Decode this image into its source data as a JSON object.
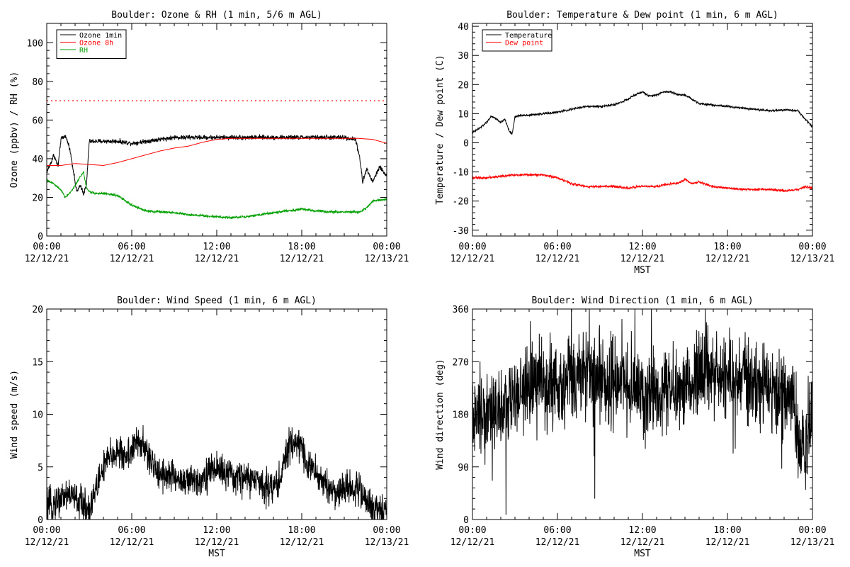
{
  "chart_data": [
    {
      "type": "line",
      "title": "Boulder: Ozone & RH (1 min, 5/6 m AGL)",
      "ylabel": "Ozone (ppbv) / RH (%)",
      "xlabel": "",
      "ylim": [
        0,
        110
      ],
      "yticks": [
        0,
        20,
        40,
        60,
        80,
        100
      ],
      "xticks": [
        {
          "h": 0,
          "time": "00:00",
          "date": "12/12/21"
        },
        {
          "h": 6,
          "time": "06:00",
          "date": "12/12/21"
        },
        {
          "h": 12,
          "time": "12:00",
          "date": "12/12/21"
        },
        {
          "h": 18,
          "time": "18:00",
          "date": "12/12/21"
        },
        {
          "h": 24,
          "time": "00:00",
          "date": "12/13/21"
        }
      ],
      "reference_line": {
        "y": 70,
        "color": "#ff0000",
        "style": "dotted"
      },
      "legend": {
        "placement": "top-left"
      },
      "series": [
        {
          "name": "Ozone 1min",
          "color": "#000000",
          "noise": 1.2,
          "x": [
            0,
            0.3,
            0.5,
            0.8,
            1.0,
            1.3,
            1.6,
            1.9,
            2.1,
            2.4,
            2.6,
            2.8,
            3.0,
            3.3,
            4,
            5,
            6,
            7,
            8,
            9,
            10,
            11,
            12,
            13,
            14,
            15,
            16,
            17,
            18,
            19,
            20,
            21,
            21.8,
            22.1,
            22.3,
            22.6,
            23,
            23.5,
            24
          ],
          "y": [
            33,
            38,
            42,
            36,
            50,
            52,
            46,
            33,
            23,
            26,
            22,
            26,
            49,
            49,
            49,
            49,
            48,
            49,
            50,
            51,
            51,
            51,
            51,
            51,
            51,
            51,
            51,
            51,
            51,
            51,
            51,
            51,
            50,
            40,
            28,
            35,
            28,
            36,
            31
          ]
        },
        {
          "name": "Ozone 8h",
          "color": "#ff0000",
          "noise": 0,
          "x": [
            0,
            1,
            2,
            3,
            4,
            5,
            6,
            7,
            8,
            9,
            10,
            11,
            12,
            13,
            14,
            15,
            16,
            17,
            18,
            19,
            20,
            21,
            22,
            23,
            24
          ],
          "y": [
            36.5,
            36.5,
            37.5,
            37,
            36.5,
            38,
            40,
            42,
            44,
            45.5,
            46.5,
            48.5,
            50,
            50.5,
            50.5,
            50.5,
            50.5,
            50.5,
            50.5,
            50.5,
            50.5,
            50.5,
            50.5,
            50,
            48
          ]
        },
        {
          "name": "RH",
          "color": "#00a000",
          "noise": 0.6,
          "x": [
            0,
            0.5,
            1.0,
            1.3,
            1.6,
            2.0,
            2.3,
            2.6,
            2.8,
            3.0,
            3.5,
            4,
            5,
            6,
            7,
            8,
            9,
            10,
            11,
            12,
            13,
            14,
            15,
            16,
            17,
            18,
            19,
            20,
            21,
            22,
            22.5,
            23,
            24
          ],
          "y": [
            29,
            27,
            24,
            20,
            22,
            26,
            30,
            33,
            25,
            23,
            22,
            22,
            21,
            16,
            13,
            12.5,
            12,
            11,
            10.5,
            10,
            9.5,
            10,
            11,
            12,
            13,
            14,
            13,
            12.5,
            12.5,
            12.5,
            14,
            18,
            19
          ]
        }
      ]
    },
    {
      "type": "line",
      "title": "Boulder: Temperature & Dew point (1 min, 6 m AGL)",
      "ylabel": "Temperature / Dew point (C)",
      "xlabel": "MST",
      "ylim": [
        -32,
        41
      ],
      "yticks": [
        -30,
        -20,
        -10,
        0,
        10,
        20,
        30,
        40
      ],
      "xticks": [
        {
          "h": 0,
          "time": "00:00",
          "date": "12/12/21"
        },
        {
          "h": 6,
          "time": "06:00",
          "date": "12/12/21"
        },
        {
          "h": 12,
          "time": "12:00",
          "date": "12/12/21"
        },
        {
          "h": 18,
          "time": "18:00",
          "date": "12/12/21"
        },
        {
          "h": 24,
          "time": "00:00",
          "date": "12/13/21"
        }
      ],
      "legend": {
        "placement": "top-left"
      },
      "series": [
        {
          "name": "Temperature",
          "color": "#000000",
          "noise": 0.35,
          "x": [
            0,
            0.5,
            1.0,
            1.3,
            1.6,
            2.0,
            2.3,
            2.6,
            2.8,
            3.0,
            3.5,
            4,
            5,
            6,
            7,
            8,
            9,
            10,
            10.5,
            11,
            11.5,
            12,
            12.5,
            13,
            13.5,
            14,
            14.5,
            15,
            16,
            17,
            18,
            19,
            20,
            21,
            22,
            23,
            23.5,
            24
          ],
          "y": [
            3.5,
            5,
            7,
            9,
            8.5,
            7,
            8,
            4,
            3,
            9,
            9.5,
            9.5,
            10,
            10.5,
            11.5,
            12.5,
            12.5,
            13,
            14,
            15,
            16.5,
            17.5,
            16,
            16.5,
            17.5,
            17.5,
            16.5,
            16.5,
            13.5,
            13,
            12.5,
            12,
            11.5,
            11,
            11.3,
            11,
            8,
            5.5
          ]
        },
        {
          "name": "Dew point",
          "color": "#ff0000",
          "noise": 0.4,
          "x": [
            0,
            0.5,
            1,
            2,
            3,
            4,
            5,
            6,
            7,
            8,
            9,
            10,
            11,
            12,
            13,
            14,
            14.5,
            15,
            15.5,
            16,
            17,
            18,
            19,
            20,
            21,
            22,
            23,
            23.5,
            24
          ],
          "y": [
            -12,
            -12,
            -12,
            -11.5,
            -11,
            -11,
            -11,
            -12,
            -14,
            -15,
            -15,
            -15,
            -15.5,
            -15,
            -15,
            -14,
            -14,
            -12.5,
            -14,
            -13.5,
            -15,
            -15.5,
            -16,
            -16,
            -16,
            -16.5,
            -16,
            -15,
            -15.5
          ]
        }
      ]
    },
    {
      "type": "line",
      "title": "Boulder: Wind Speed (1 min, 6 m AGL)",
      "ylabel": "Wind speed (m/s)",
      "xlabel": "MST",
      "ylim": [
        0,
        20
      ],
      "yticks": [
        0,
        5,
        10,
        15,
        20
      ],
      "xticks": [
        {
          "h": 0,
          "time": "00:00",
          "date": "12/12/21"
        },
        {
          "h": 6,
          "time": "06:00",
          "date": "12/12/21"
        },
        {
          "h": 12,
          "time": "12:00",
          "date": "12/12/21"
        },
        {
          "h": 18,
          "time": "18:00",
          "date": "12/12/21"
        },
        {
          "h": 24,
          "time": "00:00",
          "date": "12/13/21"
        }
      ],
      "series": [
        {
          "name": "",
          "color": "#000000",
          "noise": 1.6,
          "x": [
            0,
            0.5,
            1,
            1.5,
            2,
            2.5,
            3,
            3.5,
            4,
            4.5,
            5,
            5.5,
            6,
            6.5,
            7,
            7.5,
            8,
            9,
            10,
            11,
            12,
            13,
            14,
            15,
            16,
            16.5,
            17,
            17.5,
            18,
            18.5,
            19,
            19.5,
            20,
            20.5,
            21,
            21.5,
            22,
            22.5,
            23,
            23.5,
            24
          ],
          "y": [
            1,
            1.5,
            2,
            2.5,
            2,
            1.5,
            1,
            3,
            5,
            6,
            6.5,
            6,
            6.5,
            7.5,
            6.5,
            5,
            4.5,
            4,
            3.5,
            4,
            5,
            4,
            4,
            3.5,
            3,
            4,
            6.5,
            7.5,
            7,
            5,
            4.5,
            3.5,
            3,
            2.5,
            3,
            3,
            3,
            2,
            0.8,
            1,
            1.2
          ]
        }
      ]
    },
    {
      "type": "line",
      "title": "Boulder: Wind Direction (1 min, 6 m AGL)",
      "ylabel": "Wind direction (deg)",
      "xlabel": "MST",
      "ylim": [
        0,
        360
      ],
      "yticks": [
        0,
        90,
        180,
        270,
        360
      ],
      "xticks": [
        {
          "h": 0,
          "time": "00:00",
          "date": "12/12/21"
        },
        {
          "h": 6,
          "time": "06:00",
          "date": "12/12/21"
        },
        {
          "h": 12,
          "time": "12:00",
          "date": "12/12/21"
        },
        {
          "h": 18,
          "time": "18:00",
          "date": "12/12/21"
        },
        {
          "h": 24,
          "time": "00:00",
          "date": "12/13/21"
        }
      ],
      "series": [
        {
          "name": "",
          "color": "#000000",
          "noise": 70,
          "x": [
            0,
            1,
            2,
            3,
            3.5,
            4,
            5,
            6,
            7,
            8,
            9,
            10,
            11,
            12,
            13,
            14,
            15,
            16,
            16.5,
            17,
            18,
            19,
            20,
            21,
            22,
            22.5,
            23,
            23.5,
            24
          ],
          "y": [
            170,
            180,
            190,
            200,
            215,
            225,
            235,
            225,
            240,
            255,
            240,
            230,
            225,
            210,
            220,
            215,
            220,
            250,
            260,
            245,
            245,
            240,
            230,
            220,
            210,
            215,
            140,
            110,
            200
          ]
        }
      ]
    }
  ]
}
